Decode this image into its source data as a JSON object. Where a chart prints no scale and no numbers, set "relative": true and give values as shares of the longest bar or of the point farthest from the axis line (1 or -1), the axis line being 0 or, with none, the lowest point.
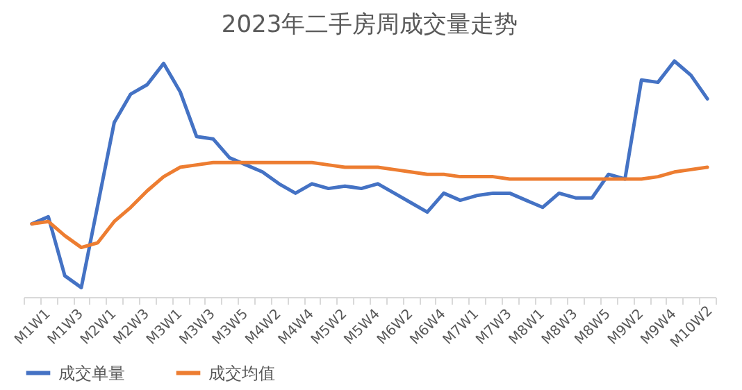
{
  "chart_data": {
    "type": "line",
    "title": "2023年二手房周成交量走势",
    "relative": true,
    "legend": "bottom",
    "grid": false,
    "categories": [
      "M1W1",
      null,
      "M1W3",
      null,
      "M2W1",
      null,
      "M2W3",
      null,
      "M3W1",
      null,
      "M3W3",
      null,
      "M3W5",
      null,
      "M4W2",
      null,
      "M4W4",
      null,
      "M5W2",
      null,
      "M5W4",
      null,
      "M6W2",
      null,
      "M6W4",
      null,
      "M7W1",
      null,
      "M7W3",
      null,
      "M8W1",
      null,
      "M8W3",
      null,
      "M8W5",
      null,
      "M9W2",
      null,
      "M9W4",
      null,
      "M10W2",
      null
    ],
    "series": [
      {
        "name": "成交单量",
        "color": "#4472c4",
        "values": [
          0.31,
          0.34,
          0.09,
          0.04,
          0.39,
          0.74,
          0.86,
          0.9,
          0.99,
          0.87,
          0.68,
          0.67,
          0.59,
          0.56,
          0.53,
          0.48,
          0.44,
          0.48,
          0.46,
          0.47,
          0.46,
          0.48,
          0.44,
          0.4,
          0.36,
          0.44,
          0.41,
          0.43,
          0.44,
          0.44,
          0.41,
          0.38,
          0.44,
          0.42,
          0.42,
          0.52,
          0.5,
          0.92,
          0.91,
          1,
          0.94,
          0.84
        ]
      },
      {
        "name": "成交均值",
        "color": "#ed7d31",
        "values": [
          0.31,
          0.32,
          0.26,
          0.21,
          0.23,
          0.32,
          0.38,
          0.45,
          0.51,
          0.55,
          0.56,
          0.57,
          0.57,
          0.57,
          0.57,
          0.57,
          0.57,
          0.57,
          0.56,
          0.55,
          0.55,
          0.55,
          0.54,
          0.53,
          0.52,
          0.52,
          0.51,
          0.51,
          0.51,
          0.5,
          0.5,
          0.5,
          0.5,
          0.5,
          0.5,
          0.5,
          0.5,
          0.5,
          0.51,
          0.53,
          0.54,
          0.55
        ]
      }
    ]
  }
}
